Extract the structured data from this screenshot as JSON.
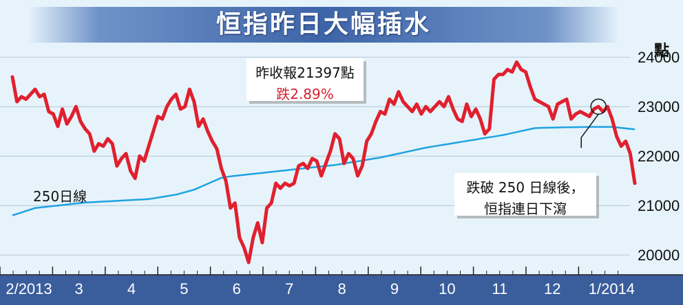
{
  "title": "恒指昨日大幅插水",
  "unit": "點",
  "annotation_close": {
    "line1": "昨收報21397點",
    "line2": "跌2.89%"
  },
  "annotation_break": {
    "line1": "跌破 250 日線後，",
    "line2": "恒指連日下瀉"
  },
  "ma_label": "250日線",
  "colors": {
    "index_line": "#e0202e",
    "ma_line": "#1ea2e0",
    "background": "#e6f3fb",
    "axis_bar": "#3a5d9c",
    "title_banner": "#3e64a8"
  },
  "chart_data": {
    "type": "line",
    "title": "恒指昨日大幅插水",
    "ylabel": "點",
    "ylim": [
      19600,
      24600
    ],
    "y_ticks": [
      20000,
      21000,
      22000,
      23000,
      24000
    ],
    "x_month_labels": [
      "2/2013",
      "3",
      "4",
      "5",
      "6",
      "7",
      "8",
      "9",
      "10",
      "11",
      "12",
      "1/2014"
    ],
    "grid": true,
    "series": [
      {
        "name": "",
        "values": [
          23600,
          23100,
          23200,
          23150,
          23250,
          23350,
          23200,
          23250,
          22900,
          22850,
          22600,
          22950,
          22650,
          22800,
          23000,
          22700,
          22550,
          22450,
          22100,
          22250,
          22200,
          22350,
          22250,
          21800,
          21950,
          22050,
          21700,
          21550,
          22000,
          21900,
          22200,
          22500,
          22800,
          22750,
          23000,
          23150,
          23250,
          22950,
          23000,
          23350,
          23100,
          22600,
          22750,
          22500,
          22300,
          22150,
          21750,
          21500,
          20950,
          21050,
          20350,
          20150,
          19850,
          20350,
          20650,
          20250,
          20950,
          21050,
          21450,
          21350,
          21450,
          21400,
          21450,
          21800,
          21850,
          21750,
          21950,
          21900,
          21600,
          21850,
          22100,
          22450,
          22350,
          21850,
          22050,
          21950,
          21600,
          21800,
          22300,
          22450,
          22700,
          22900,
          22850,
          23150,
          23050,
          23300,
          23100,
          23000,
          22900,
          23050,
          22850,
          23000,
          22900,
          23000,
          23100,
          23000,
          23200,
          22950,
          22750,
          22700,
          23050,
          22800,
          22950,
          22750,
          22450,
          22550,
          23550,
          23650,
          23650,
          23750,
          23700,
          23900,
          23750,
          23700,
          23400,
          23150,
          23100,
          23050,
          23000,
          22750,
          23050,
          23100,
          23150,
          22750,
          22850,
          22900,
          22850,
          22800,
          22950,
          23000,
          22900,
          23000,
          22750,
          22400,
          22200,
          22300,
          22050,
          21450
        ]
      },
      {
        "name": "",
        "values": [
          20800,
          20830,
          20860,
          20890,
          20920,
          20950,
          20960,
          20970,
          20980,
          20990,
          21000,
          21010,
          21020,
          21030,
          21040,
          21050,
          21060,
          21065,
          21070,
          21075,
          21080,
          21085,
          21090,
          21095,
          21100,
          21105,
          21110,
          21115,
          21120,
          21125,
          21130,
          21145,
          21160,
          21175,
          21190,
          21205,
          21220,
          21245,
          21270,
          21295,
          21320,
          21360,
          21400,
          21440,
          21480,
          21520,
          21560,
          21575,
          21590,
          21600,
          21610,
          21620,
          21630,
          21640,
          21650,
          21660,
          21670,
          21680,
          21690,
          21700,
          21710,
          21720,
          21730,
          21740,
          21750,
          21760,
          21770,
          21780,
          21790,
          21800,
          21810,
          21820,
          21835,
          21850,
          21865,
          21880,
          21895,
          21910,
          21925,
          21940,
          21955,
          21970,
          21990,
          22010,
          22030,
          22050,
          22070,
          22090,
          22110,
          22130,
          22150,
          22170,
          22185,
          22200,
          22215,
          22230,
          22245,
          22260,
          22275,
          22290,
          22305,
          22320,
          22335,
          22350,
          22365,
          22380,
          22395,
          22410,
          22425,
          22445,
          22465,
          22485,
          22505,
          22525,
          22545,
          22565,
          22570,
          22572,
          22574,
          22576,
          22578,
          22580,
          22582,
          22584,
          22585,
          22586,
          22587,
          22588,
          22589,
          22590,
          22590,
          22590,
          22590,
          22580,
          22570,
          22560,
          22550,
          22540
        ]
      }
    ]
  }
}
